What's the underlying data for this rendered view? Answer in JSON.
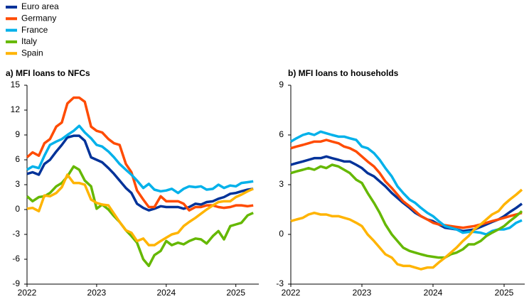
{
  "chart_data": [
    {
      "type": "line",
      "title": "a) MFI loans to NFCs",
      "x": [
        2022,
        2022.08,
        2022.17,
        2022.25,
        2022.33,
        2022.42,
        2022.5,
        2022.58,
        2022.67,
        2022.75,
        2022.83,
        2022.92,
        2023,
        2023.08,
        2023.17,
        2023.25,
        2023.33,
        2023.42,
        2023.5,
        2023.58,
        2023.67,
        2023.75,
        2023.83,
        2023.92,
        2024,
        2024.08,
        2024.17,
        2024.25,
        2024.33,
        2024.42,
        2024.5,
        2024.58,
        2024.67,
        2024.75,
        2024.83,
        2024.92,
        2025,
        2025.08,
        2025.17,
        2025.25
      ],
      "xlim": [
        2022,
        2025.33
      ],
      "xticks": [
        2022,
        2023,
        2024,
        2025
      ],
      "ylim": [
        -9,
        15
      ],
      "yticks": [
        -9,
        -6,
        -3,
        0,
        3,
        6,
        9,
        12,
        15
      ],
      "series": [
        {
          "name": "Euro area",
          "color": "#003299",
          "values": [
            4.3,
            4.5,
            4.2,
            5.5,
            6.0,
            7.0,
            7.8,
            8.7,
            8.9,
            8.9,
            8.3,
            6.3,
            6.0,
            5.7,
            5.0,
            4.3,
            3.5,
            2.6,
            2.0,
            0.7,
            0.2,
            -0.1,
            0.1,
            0.4,
            0.3,
            0.3,
            0.3,
            0.1,
            0.3,
            0.7,
            0.6,
            0.9,
            1.0,
            1.3,
            1.5,
            1.9,
            2.0,
            2.2,
            2.4,
            2.5
          ]
        },
        {
          "name": "Germany",
          "color": "#ff4b00",
          "values": [
            6.3,
            6.9,
            6.5,
            8.0,
            8.5,
            10.0,
            10.5,
            12.8,
            13.5,
            13.5,
            13.0,
            10.0,
            9.5,
            9.3,
            8.5,
            8.0,
            7.8,
            5.5,
            4.5,
            2.3,
            1.2,
            0.3,
            0.3,
            1.6,
            1.0,
            1.0,
            1.0,
            0.7,
            -0.1,
            0.3,
            0.3,
            0.5,
            0.5,
            0.3,
            0.2,
            0.3,
            0.5,
            0.5,
            0.4,
            0.5
          ]
        },
        {
          "name": "France",
          "color": "#00b1ea",
          "values": [
            4.8,
            5.2,
            5.0,
            6.5,
            7.8,
            8.2,
            8.5,
            9.0,
            9.5,
            10.1,
            9.3,
            8.6,
            7.8,
            7.6,
            7.0,
            6.3,
            5.5,
            4.8,
            4.2,
            3.5,
            2.6,
            3.1,
            2.4,
            2.2,
            2.3,
            2.5,
            2.0,
            2.5,
            2.8,
            2.7,
            2.8,
            2.4,
            2.5,
            3.0,
            2.6,
            2.9,
            2.8,
            3.2,
            3.3,
            3.4
          ]
        },
        {
          "name": "Italy",
          "color": "#65b800",
          "values": [
            1.6,
            1.0,
            1.5,
            1.6,
            2.0,
            2.8,
            3.2,
            4.0,
            5.2,
            4.8,
            3.5,
            2.8,
            0.1,
            0.6,
            0.0,
            -0.8,
            -1.5,
            -2.5,
            -3.2,
            -4.0,
            -6.0,
            -6.8,
            -5.5,
            -5.0,
            -3.8,
            -4.3,
            -4.0,
            -4.2,
            -3.8,
            -3.5,
            -3.6,
            -4.1,
            -3.2,
            -2.6,
            -3.6,
            -2.0,
            -1.8,
            -1.6,
            -0.7,
            -0.4
          ]
        },
        {
          "name": "Spain",
          "color": "#ffb400",
          "values": [
            0.1,
            0.2,
            -0.2,
            1.7,
            1.6,
            2.0,
            2.7,
            4.2,
            3.2,
            3.2,
            3.0,
            1.2,
            0.8,
            0.6,
            0.5,
            -0.5,
            -1.5,
            -2.5,
            -2.8,
            -3.8,
            -3.5,
            -4.3,
            -4.3,
            -3.8,
            -3.4,
            -3.0,
            -2.8,
            -2.0,
            -1.5,
            -1.0,
            -0.5,
            0.0,
            0.5,
            0.9,
            1.0,
            1.0,
            1.5,
            1.8,
            2.2,
            2.5
          ]
        }
      ]
    },
    {
      "type": "line",
      "title": "b) MFI loans to households",
      "x": [
        2022,
        2022.08,
        2022.17,
        2022.25,
        2022.33,
        2022.42,
        2022.5,
        2022.58,
        2022.67,
        2022.75,
        2022.83,
        2022.92,
        2023,
        2023.08,
        2023.17,
        2023.25,
        2023.33,
        2023.42,
        2023.5,
        2023.58,
        2023.67,
        2023.75,
        2023.83,
        2023.92,
        2024,
        2024.08,
        2024.17,
        2024.25,
        2024.33,
        2024.42,
        2024.5,
        2024.58,
        2024.67,
        2024.75,
        2024.83,
        2024.92,
        2025,
        2025.08,
        2025.17,
        2025.25
      ],
      "xlim": [
        2022,
        2025.29
      ],
      "xticks": [
        2022,
        2023,
        2024,
        2025
      ],
      "ylim": [
        -3,
        9
      ],
      "yticks": [
        -3,
        0,
        3,
        6,
        9
      ],
      "series": [
        {
          "name": "Euro area",
          "color": "#003299",
          "values": [
            4.2,
            4.3,
            4.4,
            4.5,
            4.6,
            4.6,
            4.7,
            4.6,
            4.5,
            4.4,
            4.4,
            4.2,
            4.0,
            3.7,
            3.5,
            3.2,
            2.9,
            2.5,
            2.2,
            1.9,
            1.6,
            1.3,
            1.1,
            0.9,
            0.8,
            0.6,
            0.4,
            0.35,
            0.3,
            0.2,
            0.25,
            0.3,
            0.45,
            0.6,
            0.75,
            0.9,
            1.1,
            1.35,
            1.6,
            1.85
          ]
        },
        {
          "name": "Germany",
          "color": "#ff4b00",
          "values": [
            5.2,
            5.3,
            5.4,
            5.5,
            5.6,
            5.6,
            5.7,
            5.6,
            5.5,
            5.3,
            5.2,
            5.0,
            4.7,
            4.4,
            4.1,
            3.7,
            3.2,
            2.8,
            2.4,
            2.0,
            1.7,
            1.4,
            1.1,
            0.9,
            0.7,
            0.6,
            0.55,
            0.5,
            0.45,
            0.4,
            0.45,
            0.5,
            0.6,
            0.7,
            0.8,
            0.9,
            1.0,
            1.1,
            1.2,
            1.3
          ]
        },
        {
          "name": "France",
          "color": "#00b1ea",
          "values": [
            5.6,
            5.8,
            6.0,
            6.1,
            6.0,
            6.2,
            6.1,
            6.0,
            5.9,
            5.9,
            5.8,
            5.7,
            5.3,
            5.2,
            4.9,
            4.5,
            4.0,
            3.5,
            2.9,
            2.5,
            2.1,
            1.9,
            1.6,
            1.3,
            1.1,
            0.8,
            0.5,
            0.4,
            0.3,
            0.1,
            0.15,
            0.15,
            0.1,
            0.0,
            0.2,
            0.3,
            0.3,
            0.4,
            0.7,
            0.85
          ]
        },
        {
          "name": "Italy",
          "color": "#65b800",
          "values": [
            3.7,
            3.8,
            3.9,
            4.0,
            3.9,
            4.1,
            4.0,
            4.2,
            4.1,
            3.9,
            3.7,
            3.3,
            3.1,
            2.5,
            1.9,
            1.3,
            0.6,
            0.0,
            -0.4,
            -0.8,
            -1.0,
            -1.1,
            -1.2,
            -1.3,
            -1.35,
            -1.4,
            -1.4,
            -1.2,
            -1.1,
            -0.9,
            -0.6,
            -0.6,
            -0.4,
            -0.1,
            0.1,
            0.3,
            0.5,
            0.8,
            1.1,
            1.4
          ]
        },
        {
          "name": "Spain",
          "color": "#ffb400",
          "values": [
            0.8,
            0.9,
            1.0,
            1.2,
            1.3,
            1.2,
            1.2,
            1.1,
            1.1,
            1.0,
            0.9,
            0.7,
            0.5,
            0.0,
            -0.4,
            -0.8,
            -1.2,
            -1.4,
            -1.8,
            -1.9,
            -1.9,
            -2.0,
            -2.1,
            -2.0,
            -2.0,
            -1.7,
            -1.4,
            -1.1,
            -0.8,
            -0.4,
            -0.1,
            0.3,
            0.6,
            0.9,
            1.2,
            1.4,
            1.8,
            2.1,
            2.4,
            2.7
          ]
        }
      ]
    }
  ]
}
